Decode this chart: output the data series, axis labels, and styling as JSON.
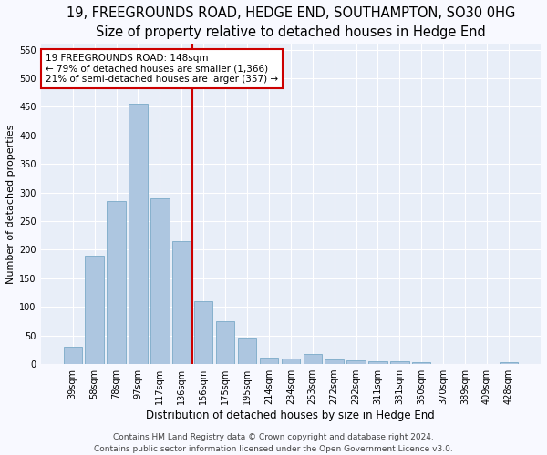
{
  "title": "19, FREEGROUNDS ROAD, HEDGE END, SOUTHAMPTON, SO30 0HG",
  "subtitle": "Size of property relative to detached houses in Hedge End",
  "xlabel": "Distribution of detached houses by size in Hedge End",
  "ylabel": "Number of detached properties",
  "categories": [
    "39sqm",
    "58sqm",
    "78sqm",
    "97sqm",
    "117sqm",
    "136sqm",
    "156sqm",
    "175sqm",
    "195sqm",
    "214sqm",
    "234sqm",
    "253sqm",
    "272sqm",
    "292sqm",
    "311sqm",
    "331sqm",
    "350sqm",
    "370sqm",
    "389sqm",
    "409sqm",
    "428sqm"
  ],
  "values": [
    30,
    190,
    285,
    455,
    290,
    215,
    110,
    75,
    47,
    12,
    10,
    18,
    8,
    7,
    5,
    5,
    3,
    0,
    0,
    0,
    4
  ],
  "bar_color": "#adc6e0",
  "bar_edgecolor": "#7aaac8",
  "vline_x": 5.5,
  "vline_color": "#cc0000",
  "annotation_title": "19 FREEGROUNDS ROAD: 148sqm",
  "annotation_line1": "← 79% of detached houses are smaller (1,366)",
  "annotation_line2": "21% of semi-detached houses are larger (357) →",
  "annotation_box_color": "#cc0000",
  "ylim": [
    0,
    560
  ],
  "yticks": [
    0,
    50,
    100,
    150,
    200,
    250,
    300,
    350,
    400,
    450,
    500,
    550
  ],
  "footer1": "Contains HM Land Registry data © Crown copyright and database right 2024.",
  "footer2": "Contains public sector information licensed under the Open Government Licence v3.0.",
  "fig_facecolor": "#f8f9ff",
  "background_color": "#e8eef8",
  "grid_color": "#ffffff",
  "title_fontsize": 10.5,
  "subtitle_fontsize": 9.5,
  "xlabel_fontsize": 8.5,
  "ylabel_fontsize": 8,
  "tick_fontsize": 7,
  "footer_fontsize": 6.5,
  "annotation_fontsize": 7.5
}
